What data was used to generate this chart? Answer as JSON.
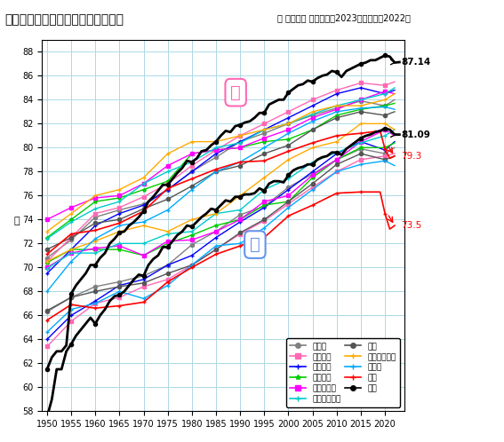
{
  "title": "主要先進国における平均寿命の推移",
  "subtitle": "＊ 値表示は 日本の最新2023年、米国の2022年",
  "ylabel": "歳",
  "xlim": [
    1949,
    2024
  ],
  "ylim": [
    58,
    89
  ],
  "xticks": [
    1950,
    1955,
    1960,
    1965,
    1970,
    1975,
    1980,
    1985,
    1990,
    1995,
    2000,
    2005,
    2010,
    2015,
    2020
  ],
  "yticks": [
    58,
    60,
    62,
    64,
    66,
    68,
    70,
    72,
    74,
    76,
    78,
    80,
    82,
    84,
    86,
    88
  ],
  "annotation_japan_female": "87.14",
  "annotation_japan_male": "81.09",
  "annotation_usa_female": "79.3",
  "annotation_usa_male": "73.5",
  "label_female": "女",
  "label_male": "男",
  "countries": {
    "canada_female": {
      "label": "カナダ",
      "color": "#808080",
      "marker": "o",
      "linewidth": 1.0,
      "linestyle": "-",
      "data": {
        "1950": 70.8,
        "1955": 72.3,
        "1960": 74.2,
        "1965": 74.8,
        "1970": 75.3,
        "1975": 76.5,
        "1980": 78.0,
        "1985": 79.2,
        "1990": 80.5,
        "1995": 81.2,
        "2000": 82.0,
        "2005": 82.7,
        "2010": 83.3,
        "2015": 83.9,
        "2020": 83.5,
        "2022": 84.0
      }
    },
    "canada_male": {
      "label": "",
      "color": "#808080",
      "marker": "o",
      "linewidth": 1.0,
      "linestyle": "-",
      "data": {
        "1950": 66.3,
        "1955": 67.5,
        "1960": 68.4,
        "1965": 68.8,
        "1970": 69.3,
        "1975": 70.2,
        "1980": 71.9,
        "1985": 73.0,
        "1990": 74.4,
        "1995": 75.1,
        "2000": 76.7,
        "2005": 77.8,
        "2010": 79.0,
        "2015": 79.9,
        "2020": 79.5,
        "2022": 80.0
      }
    },
    "france_female": {
      "label": "フランス",
      "color": "#FF69B4",
      "marker": "s",
      "linewidth": 1.0,
      "linestyle": "-",
      "data": {
        "1950": 70.5,
        "1955": 72.5,
        "1960": 74.5,
        "1965": 75.0,
        "1970": 75.9,
        "1975": 77.0,
        "1980": 78.5,
        "1985": 79.8,
        "1990": 81.0,
        "1995": 82.0,
        "2000": 83.0,
        "2005": 84.0,
        "2010": 84.8,
        "2015": 85.4,
        "2020": 85.2,
        "2022": 85.5
      }
    },
    "france_male": {
      "label": "",
      "color": "#FF69B4",
      "marker": "s",
      "linewidth": 1.0,
      "linestyle": "-",
      "data": {
        "1950": 63.4,
        "1955": 65.5,
        "1960": 67.0,
        "1965": 67.5,
        "1970": 68.4,
        "1975": 69.0,
        "1980": 70.2,
        "1985": 71.5,
        "1990": 72.8,
        "1995": 73.9,
        "2000": 75.3,
        "2005": 76.7,
        "2010": 78.0,
        "2015": 79.0,
        "2020": 79.3,
        "2022": 79.5
      }
    },
    "italy_female": {
      "label": "イタリア",
      "color": "#0000FF",
      "marker": "+",
      "linewidth": 1.0,
      "linestyle": "-",
      "data": {
        "1950": 69.5,
        "1955": 71.5,
        "1960": 73.5,
        "1965": 74.5,
        "1970": 75.2,
        "1975": 76.5,
        "1980": 78.0,
        "1985": 79.5,
        "1990": 80.5,
        "1995": 81.5,
        "2000": 82.5,
        "2005": 83.5,
        "2010": 84.5,
        "2015": 85.0,
        "2020": 84.5,
        "2022": 84.8
      }
    },
    "italy_male": {
      "label": "",
      "color": "#0000FF",
      "marker": "+",
      "linewidth": 1.0,
      "linestyle": "-",
      "data": {
        "1950": 64.0,
        "1955": 66.0,
        "1960": 67.2,
        "1965": 68.5,
        "1970": 69.0,
        "1975": 70.2,
        "1980": 71.0,
        "1985": 72.5,
        "1990": 73.8,
        "1995": 75.0,
        "2000": 76.5,
        "2005": 78.0,
        "2010": 79.5,
        "2015": 80.5,
        "2020": 79.8,
        "2022": 80.5
      }
    },
    "netherlands_female": {
      "label": "オランダ",
      "color": "#00CC00",
      "marker": "*",
      "linewidth": 1.0,
      "linestyle": "-",
      "data": {
        "1950": 72.5,
        "1955": 74.0,
        "1960": 75.5,
        "1965": 75.8,
        "1970": 76.5,
        "1975": 77.2,
        "1980": 79.5,
        "1985": 79.8,
        "1990": 80.0,
        "1995": 80.5,
        "2000": 80.7,
        "2005": 81.5,
        "2010": 82.7,
        "2015": 83.2,
        "2020": 83.5,
        "2022": 83.7
      }
    },
    "netherlands_male": {
      "label": "",
      "color": "#00CC00",
      "marker": "*",
      "linewidth": 1.0,
      "linestyle": "-",
      "data": {
        "1950": 70.4,
        "1955": 71.5,
        "1960": 71.5,
        "1965": 71.5,
        "1970": 71.0,
        "1975": 72.0,
        "1980": 72.7,
        "1985": 73.5,
        "1990": 74.0,
        "1995": 75.2,
        "2000": 75.5,
        "2005": 77.5,
        "2010": 79.0,
        "2015": 80.0,
        "2020": 80.0,
        "2022": 80.4
      }
    },
    "norway_female": {
      "label": "ノルウェー",
      "color": "#FF00FF",
      "marker": "s",
      "linewidth": 1.0,
      "linestyle": "-",
      "data": {
        "1950": 74.0,
        "1955": 75.0,
        "1960": 75.8,
        "1965": 76.0,
        "1970": 77.0,
        "1975": 78.5,
        "1980": 79.5,
        "1985": 79.8,
        "1990": 80.0,
        "1995": 80.8,
        "2000": 81.5,
        "2005": 82.5,
        "2010": 83.2,
        "2015": 84.0,
        "2020": 84.7,
        "2022": 84.5
      }
    },
    "norway_male": {
      "label": "",
      "color": "#FF00FF",
      "marker": "s",
      "linewidth": 1.0,
      "linestyle": "-",
      "data": {
        "1950": 70.0,
        "1955": 71.2,
        "1960": 71.6,
        "1965": 71.8,
        "1970": 71.0,
        "1975": 72.2,
        "1980": 72.3,
        "1985": 73.0,
        "1990": 74.0,
        "1995": 75.5,
        "2000": 76.0,
        "2005": 77.7,
        "2010": 79.0,
        "2015": 80.5,
        "2020": 81.5,
        "2022": 81.0
      }
    },
    "sweden_female": {
      "label": "スウェーデン",
      "color": "#00CCCC",
      "marker": "+",
      "linewidth": 1.0,
      "linestyle": "-",
      "data": {
        "1950": 72.4,
        "1955": 73.8,
        "1960": 74.9,
        "1965": 75.5,
        "1970": 77.0,
        "1975": 78.0,
        "1980": 78.8,
        "1985": 80.0,
        "1990": 80.4,
        "1995": 81.5,
        "2000": 82.0,
        "2005": 82.8,
        "2010": 83.5,
        "2015": 84.0,
        "2020": 84.5,
        "2022": 85.0
      }
    },
    "sweden_male": {
      "label": "",
      "color": "#00CCCC",
      "marker": "+",
      "linewidth": 1.0,
      "linestyle": "-",
      "data": {
        "1950": 69.9,
        "1955": 71.2,
        "1960": 71.2,
        "1965": 72.0,
        "1970": 72.0,
        "1975": 72.8,
        "1980": 73.0,
        "1985": 74.5,
        "1990": 74.8,
        "1995": 76.5,
        "2000": 77.4,
        "2005": 78.8,
        "2010": 79.6,
        "2015": 80.4,
        "2020": 81.0,
        "2022": 81.5
      }
    },
    "uk_female": {
      "label": "英国",
      "color": "#555555",
      "marker": "o",
      "linewidth": 1.0,
      "linestyle": "-",
      "data": {
        "1950": 71.5,
        "1955": 72.5,
        "1960": 73.7,
        "1965": 74.0,
        "1970": 74.9,
        "1975": 75.7,
        "1980": 76.8,
        "1985": 78.0,
        "1990": 78.5,
        "1995": 79.5,
        "2000": 80.2,
        "2005": 81.5,
        "2010": 82.5,
        "2015": 83.0,
        "2020": 82.7,
        "2022": 83.0
      }
    },
    "uk_male": {
      "label": "",
      "color": "#555555",
      "marker": "o",
      "linewidth": 1.0,
      "linestyle": "-",
      "data": {
        "1950": 66.4,
        "1955": 67.5,
        "1960": 68.0,
        "1965": 68.4,
        "1970": 68.7,
        "1975": 69.5,
        "1980": 70.2,
        "1985": 71.5,
        "1990": 72.9,
        "1995": 74.0,
        "2000": 75.5,
        "2005": 77.0,
        "2010": 78.6,
        "2015": 79.5,
        "2020": 79.0,
        "2022": 79.3
      }
    },
    "iceland_female": {
      "label": "アイスランド",
      "color": "#FFAA00",
      "marker": "+",
      "linewidth": 1.0,
      "linestyle": "-",
      "data": {
        "1950": 73.0,
        "1955": 74.5,
        "1960": 76.0,
        "1965": 76.5,
        "1970": 77.5,
        "1975": 79.5,
        "1980": 80.5,
        "1985": 80.5,
        "1990": 81.0,
        "1995": 81.5,
        "2000": 82.0,
        "2005": 83.0,
        "2010": 83.5,
        "2015": 83.5,
        "2020": 84.0,
        "2022": 84.5
      }
    },
    "iceland_male": {
      "label": "",
      "color": "#FFAA00",
      "marker": "+",
      "linewidth": 1.0,
      "linestyle": "-",
      "data": {
        "1950": 70.5,
        "1955": 71.5,
        "1960": 72.2,
        "1965": 73.0,
        "1970": 73.5,
        "1975": 73.0,
        "1980": 74.0,
        "1985": 74.5,
        "1990": 76.0,
        "1995": 77.5,
        "2000": 79.0,
        "2005": 80.0,
        "2010": 80.5,
        "2015": 82.0,
        "2020": 82.0,
        "2022": 81.5
      }
    },
    "germany_female": {
      "label": "ドイツ",
      "color": "#00AAFF",
      "marker": "+",
      "linewidth": 1.0,
      "linestyle": "-",
      "data": {
        "1950": 68.0,
        "1955": 70.5,
        "1960": 72.4,
        "1965": 73.5,
        "1970": 73.8,
        "1975": 74.8,
        "1980": 76.5,
        "1985": 78.0,
        "1990": 78.8,
        "1995": 80.0,
        "2000": 81.2,
        "2005": 82.2,
        "2010": 83.0,
        "2015": 83.3,
        "2020": 83.4,
        "2022": 83.2
      }
    },
    "germany_male": {
      "label": "",
      "color": "#00AAFF",
      "marker": "+",
      "linewidth": 1.0,
      "linestyle": "-",
      "data": {
        "1950": 64.6,
        "1955": 66.5,
        "1960": 67.0,
        "1965": 68.0,
        "1970": 67.4,
        "1975": 68.5,
        "1980": 70.2,
        "1985": 71.8,
        "1990": 72.0,
        "1995": 73.3,
        "2000": 75.0,
        "2005": 76.5,
        "2010": 78.0,
        "2015": 78.6,
        "2020": 78.9,
        "2022": 78.5
      }
    },
    "usa_female": {
      "label": "米国",
      "color": "#FF0000",
      "marker": "+",
      "linewidth": 1.2,
      "linestyle": "-",
      "data": {
        "1950": 71.1,
        "1955": 72.8,
        "1960": 73.1,
        "1965": 73.7,
        "1970": 74.7,
        "1975": 76.6,
        "1980": 77.4,
        "1985": 78.2,
        "1990": 78.8,
        "1995": 78.9,
        "2000": 79.7,
        "2005": 80.4,
        "2010": 81.0,
        "2015": 81.2,
        "2019": 81.4,
        "2020": 79.9,
        "2021": 79.1,
        "2022": 79.3
      }
    },
    "usa_male": {
      "label": "",
      "color": "#FF0000",
      "marker": "+",
      "linewidth": 1.2,
      "linestyle": "-",
      "data": {
        "1950": 65.6,
        "1955": 66.9,
        "1960": 66.6,
        "1965": 66.8,
        "1970": 67.1,
        "1975": 68.8,
        "1980": 70.0,
        "1985": 71.1,
        "1990": 71.8,
        "1995": 72.5,
        "2000": 74.3,
        "2005": 75.2,
        "2010": 76.2,
        "2015": 76.3,
        "2019": 76.3,
        "2020": 74.5,
        "2021": 73.2,
        "2022": 73.5
      }
    },
    "japan_female": {
      "label": "日本",
      "color": "#000000",
      "marker": "o",
      "linewidth": 2.0,
      "linestyle": "-",
      "data": {
        "1950": 61.5,
        "1951": 62.5,
        "1952": 63.0,
        "1953": 63.0,
        "1954": 63.5,
        "1955": 67.8,
        "1956": 68.5,
        "1957": 69.0,
        "1958": 69.5,
        "1959": 70.2,
        "1960": 70.2,
        "1961": 70.8,
        "1962": 71.2,
        "1963": 72.0,
        "1964": 72.4,
        "1965": 72.9,
        "1966": 73.0,
        "1967": 73.5,
        "1968": 73.8,
        "1969": 74.2,
        "1970": 74.7,
        "1971": 75.5,
        "1972": 75.9,
        "1973": 76.4,
        "1974": 76.9,
        "1975": 76.9,
        "1976": 77.4,
        "1977": 77.9,
        "1978": 78.3,
        "1979": 78.9,
        "1980": 78.8,
        "1981": 79.1,
        "1982": 79.7,
        "1983": 79.8,
        "1984": 80.2,
        "1985": 80.5,
        "1986": 81.0,
        "1987": 81.4,
        "1988": 81.3,
        "1989": 81.8,
        "1990": 81.9,
        "1991": 82.1,
        "1992": 82.2,
        "1993": 82.5,
        "1994": 82.9,
        "1995": 82.9,
        "1996": 83.6,
        "1997": 83.8,
        "1998": 84.0,
        "1999": 84.0,
        "2000": 84.6,
        "2001": 84.9,
        "2002": 85.2,
        "2003": 85.3,
        "2004": 85.6,
        "2005": 85.5,
        "2006": 85.8,
        "2007": 86.0,
        "2008": 86.1,
        "2009": 86.4,
        "2010": 86.3,
        "2011": 85.9,
        "2012": 86.4,
        "2013": 86.6,
        "2014": 86.8,
        "2015": 87.0,
        "2016": 87.1,
        "2017": 87.3,
        "2018": 87.3,
        "2019": 87.5,
        "2020": 87.7,
        "2021": 87.6,
        "2022": 87.1,
        "2023": 87.14
      }
    },
    "japan_male": {
      "label": "",
      "color": "#000000",
      "marker": "o",
      "linewidth": 2.0,
      "linestyle": "-",
      "data": {
        "1950": 57.5,
        "1951": 59.0,
        "1952": 61.5,
        "1953": 61.5,
        "1954": 63.0,
        "1955": 63.6,
        "1956": 64.3,
        "1957": 64.8,
        "1958": 65.3,
        "1959": 65.8,
        "1960": 65.3,
        "1961": 66.0,
        "1962": 66.5,
        "1963": 67.2,
        "1964": 67.6,
        "1965": 67.7,
        "1966": 68.0,
        "1967": 68.5,
        "1968": 69.0,
        "1969": 69.4,
        "1970": 69.3,
        "1971": 70.2,
        "1972": 70.7,
        "1973": 71.0,
        "1974": 71.7,
        "1975": 71.7,
        "1976": 72.2,
        "1977": 72.7,
        "1978": 73.0,
        "1979": 73.5,
        "1980": 73.4,
        "1981": 73.8,
        "1982": 74.2,
        "1983": 74.5,
        "1984": 74.9,
        "1985": 74.8,
        "1986": 75.2,
        "1987": 75.6,
        "1988": 75.5,
        "1989": 75.9,
        "1990": 75.9,
        "1991": 76.1,
        "1992": 76.1,
        "1993": 76.2,
        "1994": 76.6,
        "1995": 76.4,
        "1996": 77.0,
        "1997": 77.2,
        "1998": 77.2,
        "1999": 77.1,
        "2000": 77.7,
        "2001": 78.1,
        "2002": 78.3,
        "2003": 78.4,
        "2004": 78.6,
        "2005": 78.6,
        "2006": 79.0,
        "2007": 79.2,
        "2008": 79.3,
        "2009": 79.6,
        "2010": 79.6,
        "2011": 79.4,
        "2012": 79.9,
        "2013": 80.2,
        "2014": 80.5,
        "2015": 80.8,
        "2016": 80.98,
        "2017": 81.1,
        "2018": 81.3,
        "2019": 81.4,
        "2020": 81.6,
        "2021": 81.5,
        "2022": 81.1,
        "2023": 81.09
      }
    }
  },
  "legend_entries": [
    {
      "label": "カナダ",
      "color": "#808080",
      "marker": "o"
    },
    {
      "label": "フランス",
      "color": "#FF69B4",
      "marker": "s"
    },
    {
      "label": "イタリア",
      "color": "#0000FF",
      "marker": "+"
    },
    {
      "label": "オランダ",
      "color": "#00CC00",
      "marker": "*"
    },
    {
      "label": "ノルウェー",
      "color": "#FF00FF",
      "marker": "s"
    },
    {
      "label": "スウェーデン",
      "color": "#00CCCC",
      "marker": "+"
    },
    {
      "label": "英国",
      "color": "#555555",
      "marker": "o"
    },
    {
      "label": "アイスランド",
      "color": "#FFAA00",
      "marker": "+"
    },
    {
      "label": "ドイツ",
      "color": "#00AAFF",
      "marker": "+"
    },
    {
      "label": "米国",
      "color": "#FF0000",
      "marker": "+"
    },
    {
      "label": "日本",
      "color": "#000000",
      "marker": "o"
    }
  ],
  "background_color": "#FFFFFF",
  "grid_color": "#ADD8E6"
}
